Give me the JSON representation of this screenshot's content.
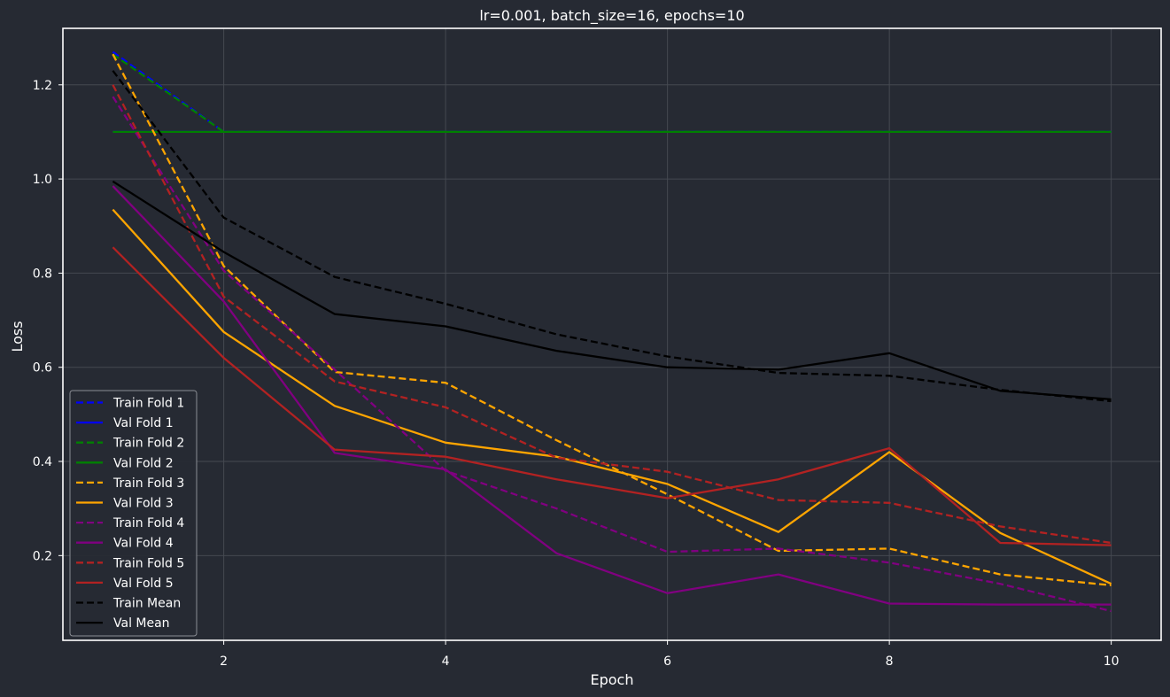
{
  "chart_data": {
    "type": "line",
    "title": "lr=0.001, batch_size=16, epochs=10",
    "xlabel": "Epoch",
    "ylabel": "Loss",
    "xlim": [
      0.55,
      10.45
    ],
    "ylim": [
      0.02,
      1.32
    ],
    "x_ticks": [
      2,
      4,
      6,
      8,
      10
    ],
    "y_ticks": [
      0.2,
      0.4,
      0.6,
      0.8,
      1.0,
      1.2
    ],
    "x_tick_labels": [
      "2",
      "4",
      "6",
      "8",
      "10"
    ],
    "y_tick_labels": [
      "0.2",
      "0.4",
      "0.6",
      "0.8",
      "1.0",
      "1.2"
    ],
    "grid": true,
    "legend_position": "lower-left",
    "x": [
      1,
      2,
      3,
      4,
      5,
      6,
      7,
      8,
      9,
      10
    ],
    "series": [
      {
        "name": "Train Fold 1",
        "color": "#0000ff",
        "style": "dashed",
        "values": [
          1.27,
          1.1,
          1.1,
          1.1,
          1.1,
          1.1,
          1.1,
          1.1,
          1.1,
          1.1
        ]
      },
      {
        "name": "Val Fold 1",
        "color": "#0000ff",
        "style": "solid",
        "values": [
          1.1,
          1.1,
          1.1,
          1.1,
          1.1,
          1.1,
          1.1,
          1.1,
          1.1,
          1.1
        ]
      },
      {
        "name": "Train Fold 2",
        "color": "#008000",
        "style": "dashed",
        "values": [
          1.265,
          1.1,
          1.1,
          1.1,
          1.1,
          1.1,
          1.1,
          1.1,
          1.1,
          1.1
        ]
      },
      {
        "name": "Val Fold 2",
        "color": "#008000",
        "style": "solid",
        "values": [
          1.1,
          1.1,
          1.1,
          1.1,
          1.1,
          1.1,
          1.1,
          1.1,
          1.1,
          1.1
        ]
      },
      {
        "name": "Train Fold 3",
        "color": "#ffa500",
        "style": "dashed",
        "values": [
          1.265,
          0.815,
          0.59,
          0.567,
          0.445,
          0.33,
          0.21,
          0.215,
          0.16,
          0.137
        ]
      },
      {
        "name": "Val Fold 3",
        "color": "#ffa500",
        "style": "solid",
        "values": [
          0.935,
          0.675,
          0.518,
          0.44,
          0.41,
          0.352,
          0.25,
          0.42,
          0.248,
          0.14
        ]
      },
      {
        "name": "Train Fold 4",
        "color": "#800080",
        "style": "dashed",
        "values": [
          1.175,
          0.805,
          0.595,
          0.38,
          0.3,
          0.208,
          0.215,
          0.185,
          0.14,
          0.082
        ]
      },
      {
        "name": "Val Fold 4",
        "color": "#800080",
        "style": "solid",
        "values": [
          0.985,
          0.74,
          0.418,
          0.383,
          0.205,
          0.12,
          0.16,
          0.098,
          0.096,
          0.096
        ]
      },
      {
        "name": "Train Fold 5",
        "color": "#b22222",
        "style": "dashed",
        "values": [
          1.2,
          0.75,
          0.57,
          0.515,
          0.408,
          0.378,
          0.318,
          0.312,
          0.262,
          0.227
        ]
      },
      {
        "name": "Val Fold 5",
        "color": "#b22222",
        "style": "solid",
        "values": [
          0.855,
          0.62,
          0.425,
          0.41,
          0.362,
          0.322,
          0.362,
          0.428,
          0.227,
          0.222
        ]
      },
      {
        "name": "Train Mean",
        "color": "#000000",
        "style": "dashed",
        "values": [
          1.23,
          0.918,
          0.792,
          0.735,
          0.67,
          0.623,
          0.588,
          0.582,
          0.552,
          0.528
        ]
      },
      {
        "name": "Val Mean",
        "color": "#000000",
        "style": "solid",
        "values": [
          0.995,
          0.845,
          0.713,
          0.687,
          0.635,
          0.6,
          0.595,
          0.63,
          0.55,
          0.532
        ]
      }
    ]
  }
}
